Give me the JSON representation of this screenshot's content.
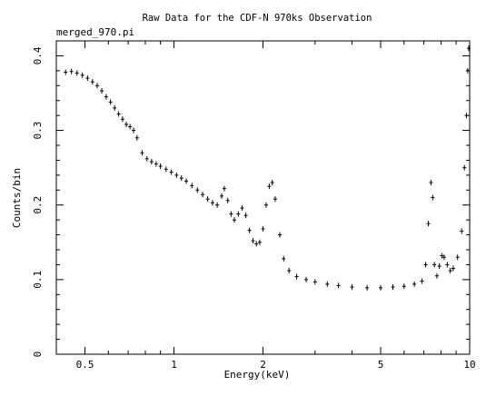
{
  "chart_data": {
    "type": "scatter",
    "title": "Raw Data for the CDF-N 970ks Observation",
    "subtitle": "merged_970.pi",
    "xlabel": "Energy(keV)",
    "ylabel": "Counts/bin",
    "xscale": "log",
    "xlim": [
      0.4,
      10
    ],
    "ylim": [
      0,
      0.42
    ],
    "xticks": [
      0.5,
      1,
      2,
      5,
      10
    ],
    "xtick_labels": [
      "0.5",
      "1",
      "2",
      "5",
      "10"
    ],
    "yticks": [
      0,
      0.1,
      0.2,
      0.3,
      0.4
    ],
    "ytick_labels": [
      "0",
      "0.1",
      "0.2",
      "0.3",
      "0.4"
    ],
    "grid": false,
    "legend": "none",
    "marker": "crosshair error bars",
    "series": [
      {
        "points": [
          [
            0.43,
            0.378
          ],
          [
            0.45,
            0.379
          ],
          [
            0.47,
            0.377
          ],
          [
            0.49,
            0.374
          ],
          [
            0.51,
            0.37
          ],
          [
            0.53,
            0.365
          ],
          [
            0.55,
            0.36
          ],
          [
            0.57,
            0.353
          ],
          [
            0.59,
            0.345
          ],
          [
            0.61,
            0.338
          ],
          [
            0.63,
            0.33
          ],
          [
            0.65,
            0.322
          ],
          [
            0.67,
            0.315
          ],
          [
            0.69,
            0.308
          ],
          [
            0.71,
            0.305
          ],
          [
            0.73,
            0.3
          ],
          [
            0.75,
            0.29
          ],
          [
            0.78,
            0.27
          ],
          [
            0.81,
            0.262
          ],
          [
            0.84,
            0.258
          ],
          [
            0.87,
            0.255
          ],
          [
            0.9,
            0.252
          ],
          [
            0.94,
            0.248
          ],
          [
            0.98,
            0.244
          ],
          [
            1.02,
            0.24
          ],
          [
            1.06,
            0.236
          ],
          [
            1.1,
            0.232
          ],
          [
            1.15,
            0.226
          ],
          [
            1.2,
            0.22
          ],
          [
            1.25,
            0.214
          ],
          [
            1.3,
            0.208
          ],
          [
            1.35,
            0.203
          ],
          [
            1.4,
            0.2
          ],
          [
            1.45,
            0.212
          ],
          [
            1.48,
            0.222
          ],
          [
            1.52,
            0.206
          ],
          [
            1.56,
            0.188
          ],
          [
            1.6,
            0.18
          ],
          [
            1.65,
            0.188
          ],
          [
            1.7,
            0.196
          ],
          [
            1.75,
            0.186
          ],
          [
            1.8,
            0.166
          ],
          [
            1.85,
            0.152
          ],
          [
            1.9,
            0.148
          ],
          [
            1.95,
            0.15
          ],
          [
            2.0,
            0.168
          ],
          [
            2.05,
            0.2
          ],
          [
            2.1,
            0.225
          ],
          [
            2.15,
            0.23
          ],
          [
            2.2,
            0.208
          ],
          [
            2.28,
            0.16
          ],
          [
            2.35,
            0.128
          ],
          [
            2.45,
            0.112
          ],
          [
            2.6,
            0.104
          ],
          [
            2.8,
            0.1
          ],
          [
            3.0,
            0.097
          ],
          [
            3.3,
            0.094
          ],
          [
            3.6,
            0.092
          ],
          [
            4.0,
            0.09
          ],
          [
            4.5,
            0.089
          ],
          [
            5.0,
            0.089
          ],
          [
            5.5,
            0.09
          ],
          [
            6.0,
            0.091
          ],
          [
            6.5,
            0.094
          ],
          [
            6.9,
            0.098
          ],
          [
            7.1,
            0.12
          ],
          [
            7.25,
            0.175
          ],
          [
            7.4,
            0.23
          ],
          [
            7.5,
            0.21
          ],
          [
            7.6,
            0.12
          ],
          [
            7.75,
            0.105
          ],
          [
            7.9,
            0.118
          ],
          [
            8.05,
            0.132
          ],
          [
            8.2,
            0.13
          ],
          [
            8.4,
            0.12
          ],
          [
            8.6,
            0.112
          ],
          [
            8.8,
            0.115
          ],
          [
            9.1,
            0.13
          ],
          [
            9.4,
            0.165
          ],
          [
            9.6,
            0.25
          ],
          [
            9.75,
            0.32
          ],
          [
            9.85,
            0.38
          ],
          [
            9.93,
            0.41
          ]
        ]
      }
    ]
  }
}
